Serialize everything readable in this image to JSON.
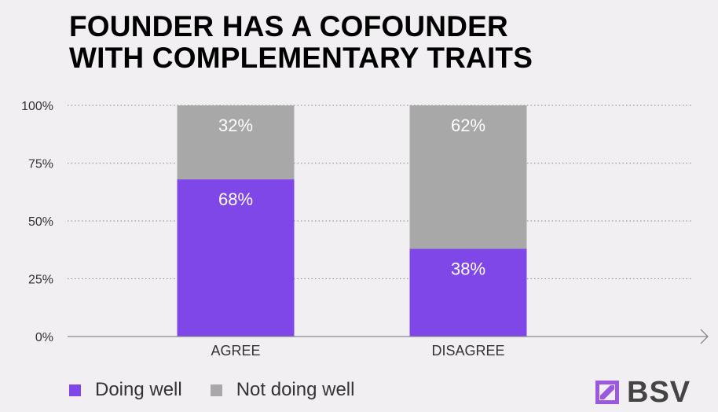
{
  "colors": {
    "doing_well": "#7f47e8",
    "not_doing_well": "#a8a8a8",
    "grid": "#9a9a9a",
    "axis": "#888888",
    "label_inside": "#ffffff",
    "tick_text": "#333333",
    "logo_mark": "#9b59e0"
  },
  "chart_data": {
    "type": "bar",
    "stacked": true,
    "title": "FOUNDER HAS A COFOUNDER WITH COMPLEMENTARY TRAITS",
    "title_lines": [
      "FOUNDER HAS A COFOUNDER",
      "WITH COMPLEMENTARY TRAITS"
    ],
    "categories": [
      "AGREE",
      "DISAGREE"
    ],
    "series": [
      {
        "name": "Doing well",
        "values": [
          68,
          38
        ],
        "labels": [
          "68%",
          "38%"
        ],
        "color_key": "doing_well"
      },
      {
        "name": "Not doing well",
        "values": [
          32,
          62
        ],
        "labels": [
          "32%",
          "62%"
        ],
        "color_key": "not_doing_well"
      }
    ],
    "y_ticks": [
      {
        "value": 0,
        "label": "0%"
      },
      {
        "value": 25,
        "label": "25%"
      },
      {
        "value": 50,
        "label": "50%"
      },
      {
        "value": 75,
        "label": "75%"
      },
      {
        "value": 100,
        "label": "100%"
      }
    ],
    "ylim": [
      0,
      100
    ],
    "xlabel": "",
    "ylabel": "",
    "grid": true,
    "legend_position": "bottom-left"
  },
  "legend": {
    "items": [
      {
        "label": "Doing well",
        "color_key": "doing_well"
      },
      {
        "label": "Not doing well",
        "color_key": "not_doing_well"
      }
    ]
  },
  "brand": {
    "logo_text": "BSV",
    "logo_icon": "bsv-logo-icon"
  }
}
